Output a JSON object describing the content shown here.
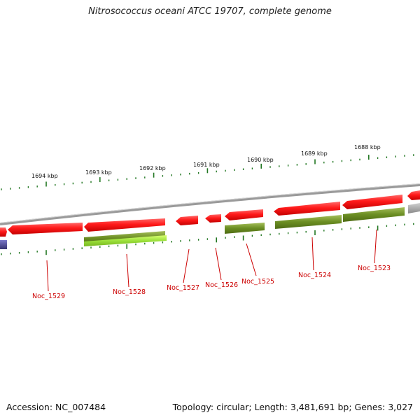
{
  "title": "Nitrosococcus oceani ATCC 19707, complete genome",
  "footer": {
    "accession": "Accession: NC_007484",
    "summary": "Topology: circular; Length: 3,481,691 bp; Genes: 3,027"
  },
  "colors": {
    "cds_forward": "#ee0000",
    "cds_reverse": "#6b8e23",
    "rna": "#9acd32",
    "other": "#4b4b9b",
    "backbone": "#8c8c8c",
    "tick": "#227722",
    "label": "#cc0000"
  },
  "kbp_labels": [
    "1694 kbp",
    "1693 kbp",
    "1692 kbp",
    "1691 kbp",
    "1690 kbp",
    "1689 kbp",
    "1688 kbp"
  ],
  "gene_labels": [
    "Noc_1529",
    "Noc_1528",
    "Noc_1527",
    "Noc_1526",
    "Noc_1525",
    "Noc_1524",
    "Noc_1523"
  ]
}
